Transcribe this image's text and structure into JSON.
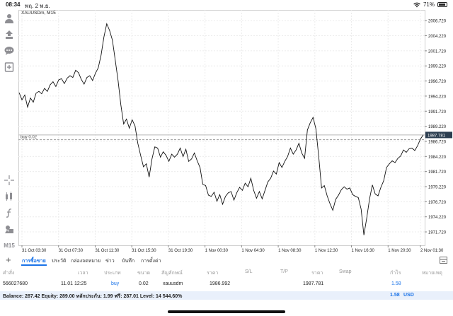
{
  "status_bar": {
    "time": "08:34",
    "date": "พฤ. 2 พ.ย.",
    "battery": "71%",
    "battery_level": 0.71
  },
  "chart": {
    "symbol": "XAUUSDm, M15",
    "order_line_label": "buy 0.02",
    "current_price_label": "1987.781"
  },
  "toolbar_icons": [
    "person-icon",
    "trade-icon",
    "chat-icon",
    "new-chart-icon",
    "crosshair-icon",
    "indicators-icon",
    "function-icon",
    "objects-icon"
  ],
  "timeframe": "M15",
  "chart_data": {
    "type": "line",
    "symbol": "XAUUSDm",
    "timeframe": "M15",
    "ylim": [
      1969.5,
      2008.5
    ],
    "y_ticks": [
      "2006.720",
      "2004.220",
      "2001.720",
      "1999.220",
      "1996.720",
      "1994.220",
      "1991.720",
      "1989.220",
      "1986.720",
      "1984.220",
      "1981.720",
      "1979.220",
      "1976.720",
      "1974.220",
      "1971.720"
    ],
    "x_ticks": [
      "31 Oct 03:30",
      "31 Oct 07:30",
      "31 Oct 11:30",
      "31 Oct 15:30",
      "31 Oct 19:30",
      "1 Nov 00:30",
      "1 Nov 04:30",
      "1 Nov 08:30",
      "1 Nov 12:30",
      "1 Nov 16:30",
      "1 Nov 20:30",
      "2 Nov 01:30"
    ],
    "order_price": 1987.0,
    "bid_price": 1987.781,
    "series": [
      {
        "values": [
          1994.8,
          1993.6,
          1994.4,
          1992.4,
          1993.9,
          1993.2,
          1994.7,
          1995.0,
          1994.6,
          1995.5,
          1995.0,
          1996.1,
          1996.6,
          1995.8,
          1996.9,
          1997.1,
          1996.3,
          1997.2,
          1997.6,
          1997.3,
          1998.5,
          1998.1,
          1997.0,
          1996.2,
          1997.3,
          1997.6,
          1996.8,
          1998.0,
          1998.9,
          2001.0,
          2004.0,
          2006.2,
          2005.1,
          2003.5,
          2000.2,
          1996.8,
          1992.8,
          1989.6,
          1990.4,
          1988.9,
          1990.3,
          1989.3,
          1986.4,
          1984.4,
          1982.5,
          1983.0,
          1980.8,
          1983.8,
          1985.8,
          1985.6,
          1984.1,
          1985.0,
          1984.4,
          1983.4,
          1984.6,
          1984.1,
          1984.6,
          1985.6,
          1984.2,
          1985.4,
          1983.4,
          1983.8,
          1984.8,
          1983.5,
          1982.4,
          1979.6,
          1979.4,
          1977.8,
          1977.6,
          1978.3,
          1976.8,
          1977.9,
          1976.3,
          1977.6,
          1978.2,
          1978.4,
          1977.0,
          1978.2,
          1979.1,
          1978.6,
          1979.8,
          1979.2,
          1980.6,
          1978.6,
          1977.3,
          1978.4,
          1977.2,
          1978.6,
          1980.0,
          1980.6,
          1981.8,
          1981.3,
          1983.2,
          1982.4,
          1983.4,
          1984.2,
          1985.6,
          1984.6,
          1985.3,
          1986.4,
          1984.8,
          1983.9,
          1988.6,
          1989.8,
          1990.7,
          1988.8,
          1984.2,
          1979.0,
          1979.4,
          1977.7,
          1976.4,
          1975.3,
          1977.1,
          1977.8,
          1978.7,
          1979.2,
          1978.8,
          1979.0,
          1977.9,
          1977.6,
          1977.4,
          1975.5,
          1971.2,
          1974.0,
          1977.2,
          1979.5,
          1978.0,
          1977.7,
          1979.1,
          1980.2,
          1982.4,
          1983.0,
          1983.5,
          1983.2,
          1983.9,
          1984.3,
          1985.3,
          1984.9,
          1985.5,
          1985.6,
          1985.2,
          1986.0,
          1987.1,
          1987.8
        ]
      }
    ]
  },
  "tabs": {
    "items": [
      "การซื้อขาย",
      "ประวัติ",
      "กล่องจดหมาย",
      "ข่าว",
      "บันทึก",
      "การตั้งค่า"
    ]
  },
  "table": {
    "headers": [
      "คำสั่ง",
      "เวลา",
      "ประเภท",
      "ขนาด",
      "สัญลักษณ์",
      "ราคา",
      "S/L",
      "T/P",
      "ราคา",
      "Swap",
      "กำไร",
      "หมายเหตุ"
    ],
    "row": {
      "order": "566027680",
      "time": "11.01 12:25",
      "type": "buy",
      "volume": "0.02",
      "symbol": "xauusdm",
      "open_price": "1986.992",
      "current_price": "1987.781",
      "profit": "1.58"
    }
  },
  "balance": {
    "summary": "Balance: 287.42 Equity: 289.00 หลักประกัน: 1.99 ฟรี: 287.01 Level: 14 544.60%",
    "profit": "1.58",
    "currency": "USD"
  },
  "colors": {
    "accent": "#1a73e8",
    "bid_tag": "#2c3e50",
    "balance_bg": "#e9f0fb"
  }
}
